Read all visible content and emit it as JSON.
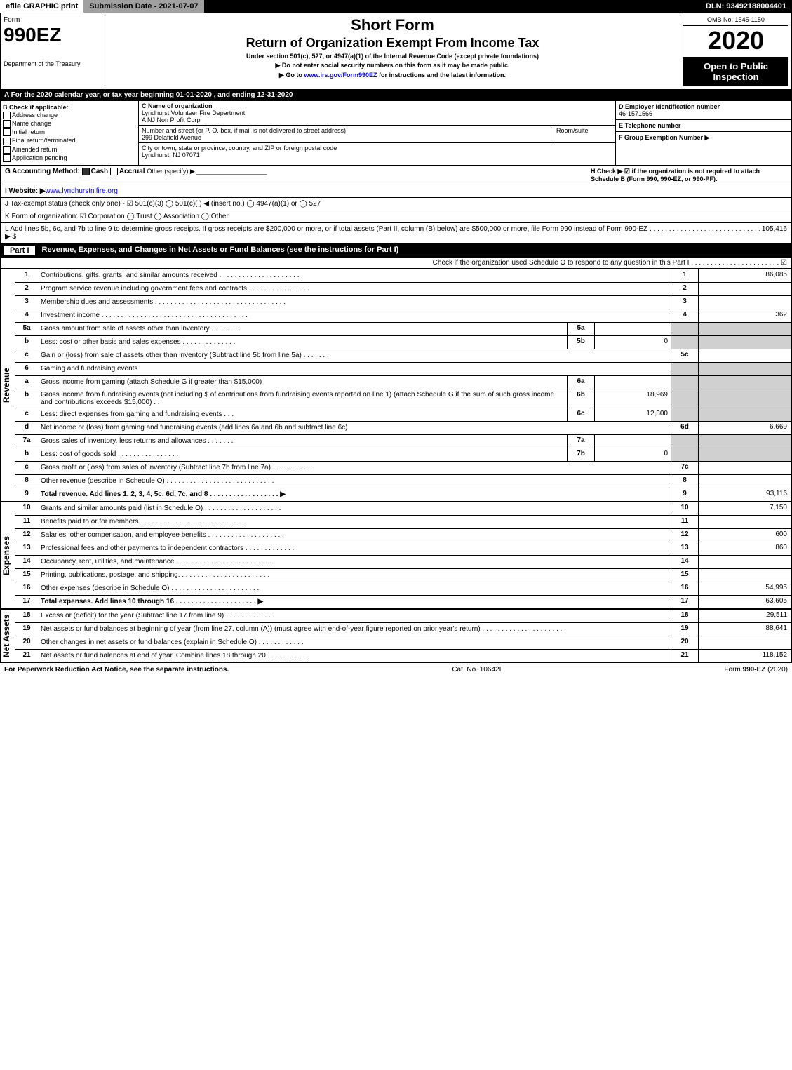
{
  "topbar": {
    "efile": "efile GRAPHIC print",
    "subdate_label": "Submission Date - 2021-07-07",
    "dln": "DLN: 93492188004401"
  },
  "header": {
    "form_label": "Form",
    "form_number": "990EZ",
    "dept": "Department of the Treasury",
    "irs": "Internal Revenue Service",
    "title1": "Short Form",
    "title2": "Return of Organization Exempt From Income Tax",
    "sub1": "Under section 501(c), 527, or 4947(a)(1) of the Internal Revenue Code (except private foundations)",
    "sub2": "▶ Do not enter social security numbers on this form as it may be made public.",
    "sub3": "▶ Go to www.irs.gov/Form990EZ for instructions and the latest information.",
    "omb": "OMB No. 1545-1150",
    "year": "2020",
    "opento": "Open to Public Inspection"
  },
  "sectionA": "A For the 2020 calendar year, or tax year beginning 01-01-2020 , and ending 12-31-2020",
  "blockB": {
    "title": "B Check if applicable:",
    "opts": [
      "Address change",
      "Name change",
      "Initial return",
      "Final return/terminated",
      "Amended return",
      "Application pending"
    ]
  },
  "blockC": {
    "c_label": "C Name of organization",
    "org_name": "Lyndhurst Volunteer Fire Department",
    "org_sub": "A NJ Non Profit Corp",
    "addr_label": "Number and street (or P. O. box, if mail is not delivered to street address)",
    "room": "Room/suite",
    "addr": "299 Delafield Avenue",
    "city_label": "City or town, state or province, country, and ZIP or foreign postal code",
    "city": "Lyndhurst, NJ  07071"
  },
  "blockD": {
    "d": "D Employer identification number",
    "ein": "46-1571566",
    "e": "E Telephone number",
    "f": "F Group Exemption Number    ▶"
  },
  "rowG": {
    "g": "G Accounting Method:",
    "cash": "Cash",
    "accrual": "Accrual",
    "other": "Other (specify) ▶",
    "h": "H  Check ▶ ☑ if the organization is not required to attach Schedule B (Form 990, 990-EZ, or 990-PF)."
  },
  "rowI": {
    "label": "I Website: ▶",
    "value": "www.lyndhurstnjfire.org"
  },
  "rowJ": "J Tax-exempt status (check only one) - ☑ 501(c)(3)  ◯ 501(c)(  ) ◀ (insert no.)  ◯ 4947(a)(1) or  ◯ 527",
  "rowK": "K Form of organization:  ☑ Corporation  ◯ Trust  ◯ Association  ◯ Other",
  "rowL": {
    "text": "L Add lines 5b, 6c, and 7b to line 9 to determine gross receipts. If gross receipts are $200,000 or more, or if total assets (Part II, column (B) below) are $500,000 or more, file Form 990 instead of Form 990-EZ . . . . . . . . . . . . . . . . . . . . . . . . . . . . . ▶ $",
    "amount": "105,416"
  },
  "partI": {
    "title": "Revenue, Expenses, and Changes in Net Assets or Fund Balances (see the instructions for Part I)",
    "check": "Check if the organization used Schedule O to respond to any question in this Part I . . . . . . . . . . . . . . . . . . . . . . . ☑",
    "sidelabels": {
      "revenue": "Revenue",
      "expenses": "Expenses",
      "netassets": "Net Assets"
    },
    "lines": [
      {
        "n": "1",
        "d": "Contributions, gifts, grants, and similar amounts received . . . . . . . . . . . . . . . . . . . . .",
        "rn": "1",
        "rv": "86,085"
      },
      {
        "n": "2",
        "d": "Program service revenue including government fees and contracts . . . . . . . . . . . . . . . .",
        "rn": "2",
        "rv": ""
      },
      {
        "n": "3",
        "d": "Membership dues and assessments . . . . . . . . . . . . . . . . . . . . . . . . . . . . . . . . . .",
        "rn": "3",
        "rv": ""
      },
      {
        "n": "4",
        "d": "Investment income . . . . . . . . . . . . . . . . . . . . . . . . . . . . . . . . . . . . . .",
        "rn": "4",
        "rv": "362"
      },
      {
        "n": "5a",
        "d": "Gross amount from sale of assets other than inventory . . . . . . . .",
        "sc": "5a",
        "sv": "",
        "shade": true
      },
      {
        "n": "b",
        "d": "Less: cost or other basis and sales expenses . . . . . . . . . . . . . .",
        "sc": "5b",
        "sv": "0",
        "shade": true
      },
      {
        "n": "c",
        "d": "Gain or (loss) from sale of assets other than inventory (Subtract line 5b from line 5a) . . . . . . .",
        "rn": "5c",
        "rv": ""
      },
      {
        "n": "6",
        "d": "Gaming and fundraising events",
        "shade": true
      },
      {
        "n": "a",
        "d": "Gross income from gaming (attach Schedule G if greater than $15,000)",
        "sc": "6a",
        "sv": "",
        "shade": true
      },
      {
        "n": "b",
        "d": "Gross income from fundraising events (not including $                    of contributions from fundraising events reported on line 1) (attach Schedule G if the sum of such gross income and contributions exceeds $15,000)  . .",
        "sc": "6b",
        "sv": "18,969",
        "shade": true
      },
      {
        "n": "c",
        "d": "Less: direct expenses from gaming and fundraising events      . . .",
        "sc": "6c",
        "sv": "12,300",
        "shade": true
      },
      {
        "n": "d",
        "d": "Net income or (loss) from gaming and fundraising events (add lines 6a and 6b and subtract line 6c)",
        "rn": "6d",
        "rv": "6,669"
      },
      {
        "n": "7a",
        "d": "Gross sales of inventory, less returns and allowances . . . . . . .",
        "sc": "7a",
        "sv": "",
        "shade": true
      },
      {
        "n": "b",
        "d": "Less: cost of goods sold      . . . . . . . . . . . . . . . .",
        "sc": "7b",
        "sv": "0",
        "shade": true
      },
      {
        "n": "c",
        "d": "Gross profit or (loss) from sales of inventory (Subtract line 7b from line 7a) . . . . . . . . . .",
        "rn": "7c",
        "rv": ""
      },
      {
        "n": "8",
        "d": "Other revenue (describe in Schedule O) . . . . . . . . . . . . . . . . . . . . . . . . . . . .",
        "rn": "8",
        "rv": ""
      },
      {
        "n": "9",
        "d": "Total revenue. Add lines 1, 2, 3, 4, 5c, 6d, 7c, and 8  . . . . . . . . . . . . . . . . . .         ▶",
        "rn": "9",
        "rv": "93,116",
        "bold": true
      }
    ],
    "exp_lines": [
      {
        "n": "10",
        "d": "Grants and similar amounts paid (list in Schedule O) . . . . . . . . . . . . . . . . . . . .",
        "rn": "10",
        "rv": "7,150"
      },
      {
        "n": "11",
        "d": "Benefits paid to or for members      . . . . . . . . . . . . . . . . . . . . . . . . . . .",
        "rn": "11",
        "rv": ""
      },
      {
        "n": "12",
        "d": "Salaries, other compensation, and employee benefits . . . . . . . . . . . . . . . . . . . .",
        "rn": "12",
        "rv": "600"
      },
      {
        "n": "13",
        "d": "Professional fees and other payments to independent contractors . . . . . . . . . . . . . .",
        "rn": "13",
        "rv": "860"
      },
      {
        "n": "14",
        "d": "Occupancy, rent, utilities, and maintenance . . . . . . . . . . . . . . . . . . . . . . . . .",
        "rn": "14",
        "rv": ""
      },
      {
        "n": "15",
        "d": "Printing, publications, postage, and shipping. . . . . . . . . . . . . . . . . . . . . . . .",
        "rn": "15",
        "rv": ""
      },
      {
        "n": "16",
        "d": "Other expenses (describe in Schedule O)     . . . . . . . . . . . . . . . . . . . . . . .",
        "rn": "16",
        "rv": "54,995"
      },
      {
        "n": "17",
        "d": "Total expenses. Add lines 10 through 16      . . . . . . . . . . . . . . . . . . . . .        ▶",
        "rn": "17",
        "rv": "63,605",
        "bold": true
      }
    ],
    "na_lines": [
      {
        "n": "18",
        "d": "Excess or (deficit) for the year (Subtract line 17 from line 9)        . . . . . . . . . . . . .",
        "rn": "18",
        "rv": "29,511"
      },
      {
        "n": "19",
        "d": "Net assets or fund balances at beginning of year (from line 27, column (A)) (must agree with end-of-year figure reported on prior year's return) . . . . . . . . . . . . . . . . . . . . . .",
        "rn": "19",
        "rv": "88,641"
      },
      {
        "n": "20",
        "d": "Other changes in net assets or fund balances (explain in Schedule O) . . . . . . . . . . . .",
        "rn": "20",
        "rv": ""
      },
      {
        "n": "21",
        "d": "Net assets or fund balances at end of year. Combine lines 18 through 20 . . . . . . . . . . .",
        "rn": "21",
        "rv": "118,152"
      }
    ]
  },
  "footer": {
    "left": "For Paperwork Reduction Act Notice, see the separate instructions.",
    "center": "Cat. No. 10642I",
    "right": "Form 990-EZ (2020)"
  }
}
